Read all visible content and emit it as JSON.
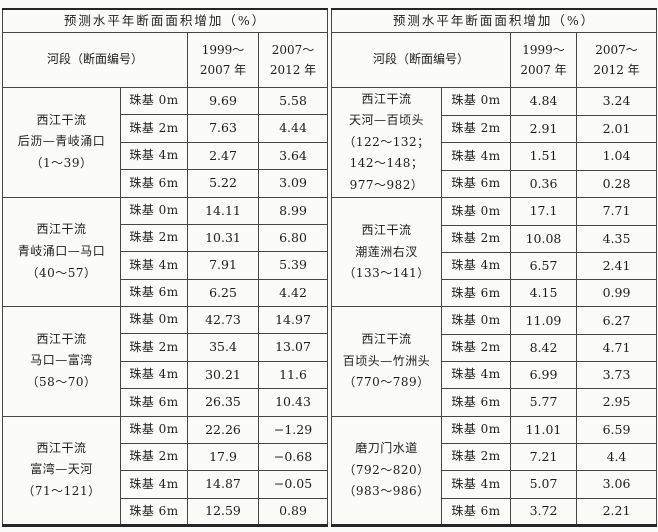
{
  "page": {
    "background": "#fbfbf7",
    "line_color": "#474644",
    "text_color": "#1d1d1d"
  },
  "tables": [
    {
      "title": "预测水平年断面面积增加（%）",
      "header": {
        "river_segment": "河段（断面编号）",
        "period1": [
          "1999～",
          "2007 年"
        ],
        "period2": [
          "2007～",
          "2012 年"
        ]
      },
      "blocks": [
        {
          "segment_lines": [
            "西江干流",
            "后沥—青岐涌口",
            "（1～39）"
          ],
          "rows": [
            {
              "level": "珠基 0m",
              "p1": "9.69",
              "p2": "5.58"
            },
            {
              "level": "珠基 2m",
              "p1": "7.63",
              "p2": "4.44"
            },
            {
              "level": "珠基 4m",
              "p1": "2.47",
              "p2": "3.64"
            },
            {
              "level": "珠基 6m",
              "p1": "5.22",
              "p2": "3.09"
            }
          ]
        },
        {
          "segment_lines": [
            "西江干流",
            "青岐涌口—马口",
            "（40～57）"
          ],
          "rows": [
            {
              "level": "珠基 0m",
              "p1": "14.11",
              "p2": "8.99"
            },
            {
              "level": "珠基 2m",
              "p1": "10.31",
              "p2": "6.80"
            },
            {
              "level": "珠基 4m",
              "p1": "7.91",
              "p2": "5.39"
            },
            {
              "level": "珠基 6m",
              "p1": "6.25",
              "p2": "4.42"
            }
          ]
        },
        {
          "segment_lines": [
            "西江干流",
            "马口—富湾",
            "（58～70）"
          ],
          "rows": [
            {
              "level": "珠基 0m",
              "p1": "42.73",
              "p2": "14.97"
            },
            {
              "level": "珠基 2m",
              "p1": "35.4",
              "p2": "13.07"
            },
            {
              "level": "珠基 4m",
              "p1": "30.21",
              "p2": "11.6"
            },
            {
              "level": "珠基 6m",
              "p1": "26.35",
              "p2": "10.43"
            }
          ]
        },
        {
          "segment_lines": [
            "西江干流",
            "富湾—天河",
            "（71～121）"
          ],
          "rows": [
            {
              "level": "珠基 0m",
              "p1": "22.26",
              "p2": "−1.29"
            },
            {
              "level": "珠基 2m",
              "p1": "17.9",
              "p2": "−0.68"
            },
            {
              "level": "珠基 4m",
              "p1": "14.87",
              "p2": "−0.05"
            },
            {
              "level": "珠基 6m",
              "p1": "12.59",
              "p2": "0.89"
            }
          ]
        }
      ]
    },
    {
      "title": "预测水平年断面面积增加（%）",
      "header": {
        "river_segment": "河段（断面编号）",
        "period1": [
          "1999～",
          "2007 年"
        ],
        "period2": [
          "2007～",
          "2012 年"
        ]
      },
      "blocks": [
        {
          "segment_lines": [
            "西江干流",
            "天河—百顷头",
            "（122～132；",
            "142～148；",
            "977～982）"
          ],
          "rows": [
            {
              "level": "珠基 0m",
              "p1": "4.84",
              "p2": "3.24"
            },
            {
              "level": "珠基 2m",
              "p1": "2.91",
              "p2": "2.01"
            },
            {
              "level": "珠基 4m",
              "p1": "1.51",
              "p2": "1.04"
            },
            {
              "level": "珠基 6m",
              "p1": "0.36",
              "p2": "0.28"
            }
          ]
        },
        {
          "segment_lines": [
            "西江干流",
            "潮莲洲右汊",
            "（133～141）"
          ],
          "rows": [
            {
              "level": "珠基 0m",
              "p1": "17.1",
              "p2": "7.71"
            },
            {
              "level": "珠基 2m",
              "p1": "10.08",
              "p2": "4.35"
            },
            {
              "level": "珠基 4m",
              "p1": "6.57",
              "p2": "2.41"
            },
            {
              "level": "珠基 6m",
              "p1": "4.15",
              "p2": "0.99"
            }
          ]
        },
        {
          "segment_lines": [
            "西江干流",
            "百顷头—竹洲头",
            "（770～789）"
          ],
          "rows": [
            {
              "level": "珠基 0m",
              "p1": "11.09",
              "p2": "6.27"
            },
            {
              "level": "珠基 2m",
              "p1": "8.42",
              "p2": "4.71"
            },
            {
              "level": "珠基 4m",
              "p1": "6.99",
              "p2": "3.73"
            },
            {
              "level": "珠基 6m",
              "p1": "5.77",
              "p2": "2.95"
            }
          ]
        },
        {
          "segment_lines": [
            "磨刀门水道",
            "（792～820）",
            "（983～986）"
          ],
          "rows": [
            {
              "level": "珠基 0m",
              "p1": "11.01",
              "p2": "6.59"
            },
            {
              "level": "珠基 2m",
              "p1": "7.21",
              "p2": "4.4"
            },
            {
              "level": "珠基 4m",
              "p1": "5.07",
              "p2": "3.06"
            },
            {
              "level": "珠基 6m",
              "p1": "3.72",
              "p2": "2.21"
            }
          ]
        }
      ]
    }
  ]
}
